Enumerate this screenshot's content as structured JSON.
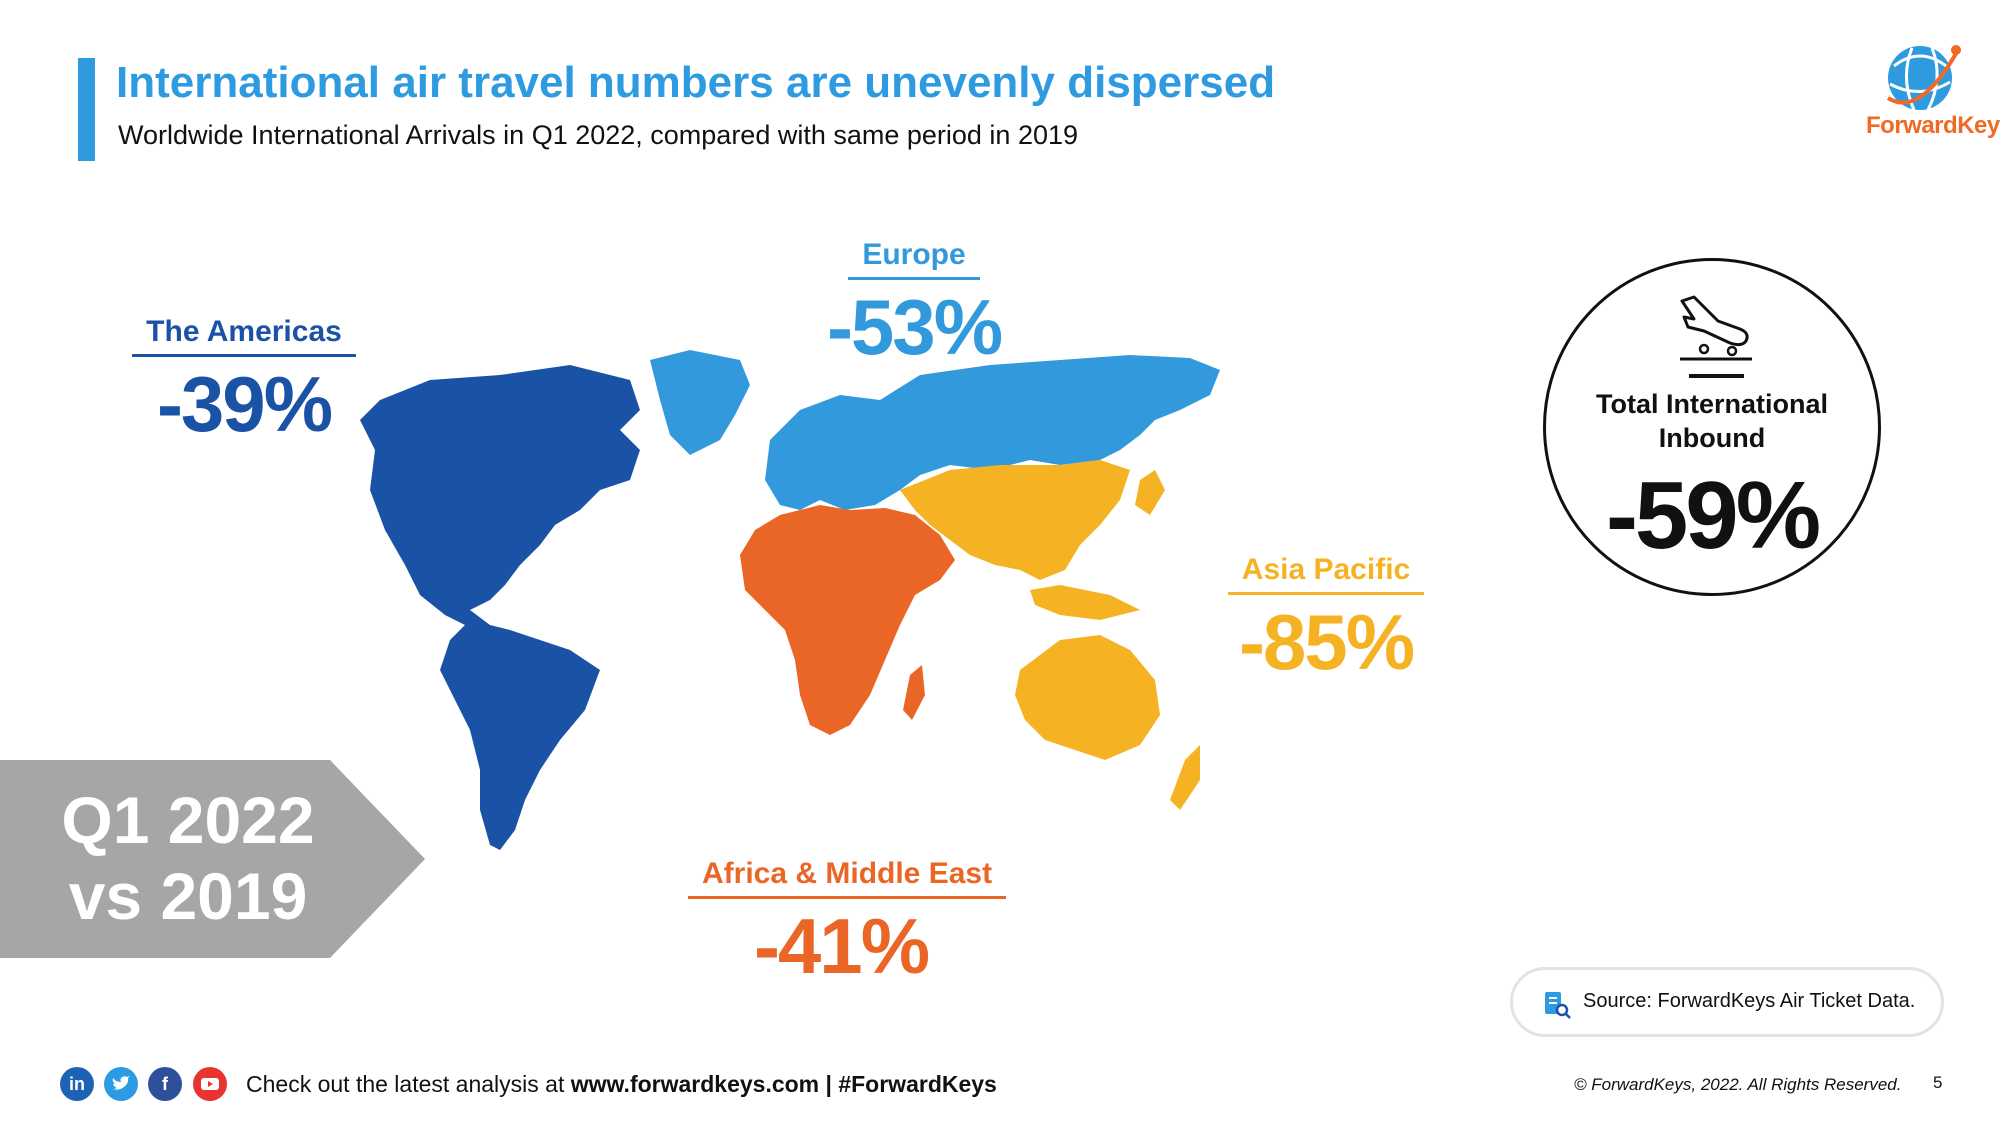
{
  "header": {
    "title": "International air travel numbers are unevenly dispersed",
    "subtitle": "Worldwide International Arrivals in Q1 2022, compared with same period in 2019"
  },
  "logo": {
    "brand_part1": "Forward",
    "brand_part2": "Keys"
  },
  "regions": {
    "americas": {
      "name": "The Americas",
      "change": "-39%",
      "color": "#1a53a6"
    },
    "europe": {
      "name": "Europe",
      "change": "-53%",
      "color": "#3399dd"
    },
    "asia_pacific": {
      "name": "Asia Pacific",
      "change": "-85%",
      "color": "#f5b223"
    },
    "africa_me": {
      "name": "Africa & Middle East",
      "change": "-41%",
      "color": "#ea6626"
    }
  },
  "total": {
    "label": "Total International Inbound",
    "change": "-59%",
    "icon": "plane-landing-icon"
  },
  "period": {
    "line1": "Q1 2022",
    "line2": "vs 2019"
  },
  "source": {
    "text": "Source: ForwardKeys Air Ticket Data."
  },
  "footer": {
    "cta_prefix": "Check out the latest analysis at ",
    "cta_link": "www.forwardkeys.com | #ForwardKeys",
    "social": [
      "in",
      "t",
      "f",
      "yt"
    ],
    "copyright": "© ForwardKeys, 2022. All Rights Reserved.",
    "page_number": "5"
  }
}
